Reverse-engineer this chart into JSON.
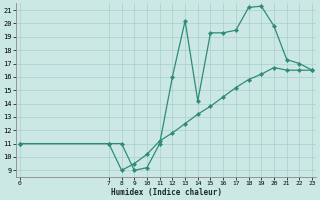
{
  "xlabel": "Humidex (Indice chaleur)",
  "line_color": "#2e8b7a",
  "bg_color": "#cce8e4",
  "grid_color": "#aacfcb",
  "spine_color": "#888888",
  "xlim": [
    -0.3,
    23.3
  ],
  "ylim": [
    8.5,
    21.5
  ],
  "xticks": [
    0,
    7,
    8,
    9,
    10,
    11,
    12,
    13,
    14,
    15,
    16,
    17,
    18,
    19,
    20,
    21,
    22,
    23
  ],
  "yticks": [
    9,
    10,
    11,
    12,
    13,
    14,
    15,
    16,
    17,
    18,
    19,
    20,
    21
  ],
  "x_upper": [
    0,
    7,
    8,
    9,
    10,
    11,
    12,
    13,
    14,
    15,
    16,
    17,
    18,
    19,
    20,
    21,
    22,
    23
  ],
  "y_upper": [
    11,
    11,
    11,
    9,
    9.2,
    11,
    16,
    20.2,
    14.2,
    19.3,
    19.3,
    19.5,
    21.2,
    21.3,
    19.8,
    17.3,
    17.0,
    16.5
  ],
  "x_lower": [
    0,
    7,
    8,
    9,
    10,
    11,
    12,
    13,
    14,
    15,
    16,
    17,
    18,
    19,
    20,
    21,
    22,
    23
  ],
  "y_lower": [
    11,
    11,
    9.0,
    9.5,
    10.2,
    11.2,
    11.8,
    12.5,
    13.2,
    13.8,
    14.5,
    15.2,
    15.8,
    16.2,
    16.7,
    16.5,
    16.5,
    16.5
  ],
  "tick_labelsize": 5.0,
  "xlabel_fontsize": 5.5,
  "marker_size": 2.2,
  "linewidth": 0.9
}
